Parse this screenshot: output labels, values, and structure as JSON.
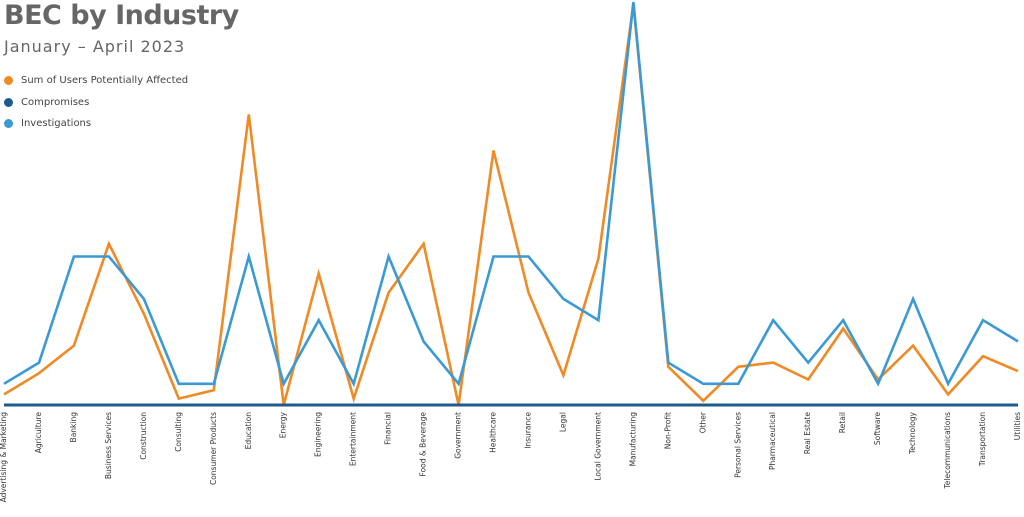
{
  "title": "BEC by Industry",
  "subtitle": "January – April 2023",
  "colors": {
    "users": "#f08a24",
    "compromises": "#1f5a8a",
    "investigations": "#3b99d4"
  },
  "chart_data": {
    "type": "line",
    "title": "BEC by Industry",
    "subtitle": "January – April 2023",
    "xlabel": "",
    "ylabel": "",
    "grid": false,
    "legend_position": "top-left",
    "ylim": [
      0,
      19
    ],
    "categories": [
      "Advertising & Marketing",
      "Agriculture",
      "Banking",
      "Business Services",
      "Construction",
      "Consulting",
      "Consumer Products",
      "Education",
      "Energy",
      "Engineering",
      "Entertainment",
      "Financial",
      "Food & Beverage",
      "Government",
      "Healthcare",
      "Insurance",
      "Legal",
      "Local Government",
      "Manufacturing",
      "Non-Profit",
      "Other",
      "Personal Services",
      "Pharmaceutical",
      "Real Estate",
      "Retail",
      "Software",
      "Technology",
      "Telecommunications",
      "Transportation",
      "Utilities"
    ],
    "series": [
      {
        "name": "Sum of Users Potentially Affected",
        "color": "#f08a24",
        "values": [
          0.5,
          1.5,
          2.8,
          7.6,
          4.3,
          0.3,
          0.7,
          13.7,
          0,
          6.2,
          0.3,
          5.3,
          7.6,
          0,
          12,
          5.3,
          1.4,
          6.9,
          18.9,
          1.8,
          0.2,
          1.8,
          2.0,
          1.2,
          3.6,
          1.2,
          2.8,
          0.5,
          2.3,
          1.6
        ]
      },
      {
        "name": "Compromises",
        "color": "#1f5a8a",
        "values": [
          0,
          0,
          0,
          0,
          0,
          0,
          0,
          0,
          0,
          0,
          0,
          0,
          0,
          0,
          0,
          0,
          0,
          0,
          0,
          0,
          0,
          0,
          0,
          0,
          0,
          0,
          0,
          0,
          0,
          0
        ]
      },
      {
        "name": "Investigations",
        "color": "#3b99d4",
        "values": [
          1,
          2,
          7,
          7,
          5,
          1,
          1,
          7,
          1,
          4,
          1,
          7,
          3,
          1,
          7,
          7,
          5,
          4,
          19,
          2,
          1,
          1,
          4,
          2,
          4,
          1,
          5,
          1,
          4,
          3
        ]
      }
    ]
  }
}
